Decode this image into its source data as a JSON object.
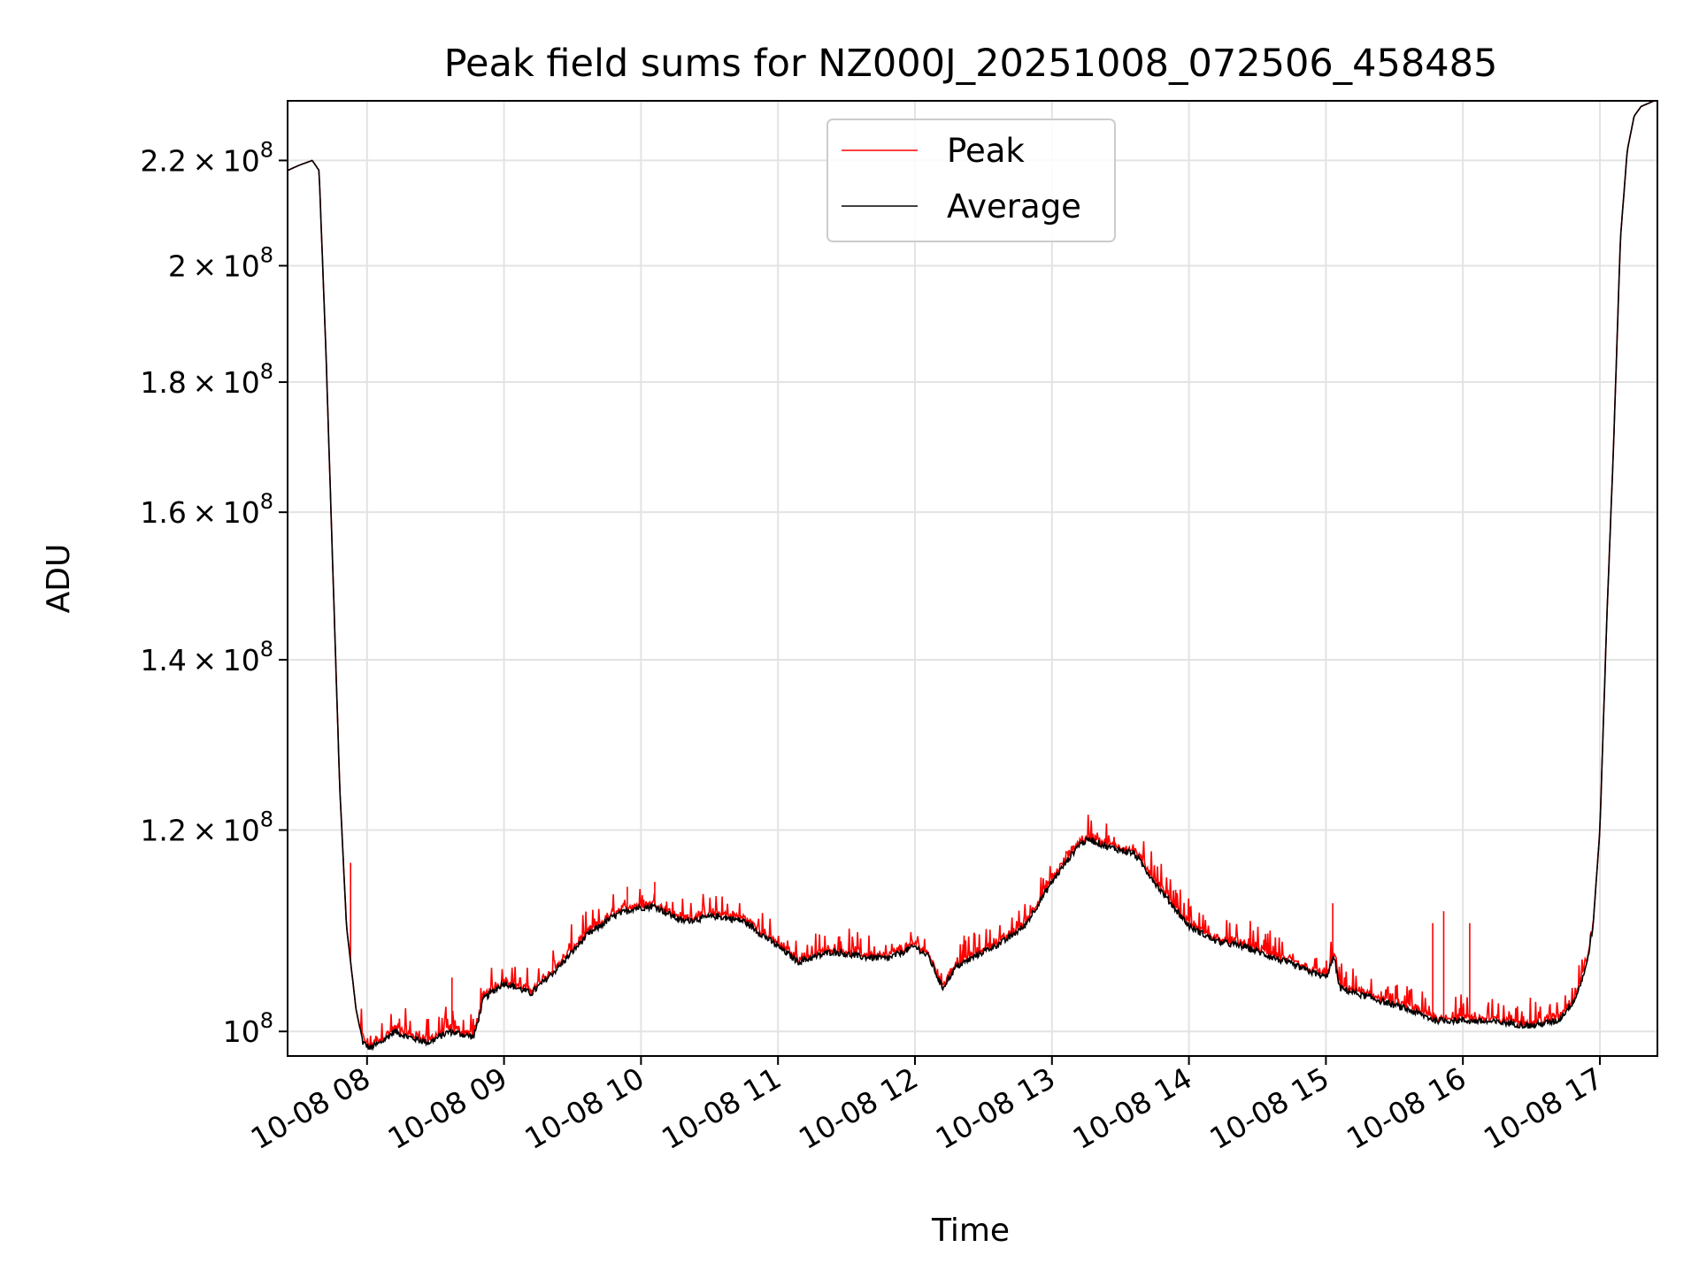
{
  "chart_data": {
    "type": "line",
    "title": "Peak field sums for NZ000J_20251008_072506_458485",
    "xlabel": "Time",
    "ylabel": "ADU",
    "y_scale": "log",
    "grid": true,
    "legend_position": "top-center",
    "xlim_hours": [
      7.42,
      17.42
    ],
    "ylim": [
      97800000.0,
      232200000.0
    ],
    "x_ticks": [
      {
        "hour": 8,
        "label": "10-08 08"
      },
      {
        "hour": 9,
        "label": "10-08 09"
      },
      {
        "hour": 10,
        "label": "10-08 10"
      },
      {
        "hour": 11,
        "label": "10-08 11"
      },
      {
        "hour": 12,
        "label": "10-08 12"
      },
      {
        "hour": 13,
        "label": "10-08 13"
      },
      {
        "hour": 14,
        "label": "10-08 14"
      },
      {
        "hour": 15,
        "label": "10-08 15"
      },
      {
        "hour": 16,
        "label": "10-08 16"
      },
      {
        "hour": 17,
        "label": "10-08 17"
      }
    ],
    "y_ticks": [
      {
        "value": 100000000.0,
        "mantissa": "",
        "exponent": "8"
      },
      {
        "value": 120000000.0,
        "mantissa": "1.2",
        "exponent": "8"
      },
      {
        "value": 140000000.0,
        "mantissa": "1.4",
        "exponent": "8"
      },
      {
        "value": 160000000.0,
        "mantissa": "1.6",
        "exponent": "8"
      },
      {
        "value": 180000000.0,
        "mantissa": "1.8",
        "exponent": "8"
      },
      {
        "value": 200000000.0,
        "mantissa": "2",
        "exponent": "8"
      },
      {
        "value": 220000000.0,
        "mantissa": "2.2",
        "exponent": "8"
      }
    ],
    "series": [
      {
        "name": "Peak",
        "color": "#ff0000",
        "style": "noisy-upper"
      },
      {
        "name": "Average",
        "color": "#000000",
        "style": "smooth"
      }
    ],
    "x_hours": [
      7.42,
      7.5,
      7.6,
      7.65,
      7.7,
      7.8,
      7.85,
      7.92,
      7.97,
      8.02,
      8.1,
      8.2,
      8.3,
      8.45,
      8.6,
      8.78,
      8.85,
      9.0,
      9.2,
      9.4,
      9.6,
      9.8,
      9.95,
      10.1,
      10.3,
      10.55,
      10.75,
      10.95,
      11.15,
      11.4,
      11.6,
      11.8,
      12.0,
      12.1,
      12.2,
      12.3,
      12.5,
      12.65,
      12.8,
      13.0,
      13.2,
      13.28,
      13.4,
      13.6,
      13.8,
      14.0,
      14.2,
      14.4,
      14.6,
      14.8,
      15.0,
      15.06,
      15.1,
      15.3,
      15.6,
      15.8,
      16.0,
      16.3,
      16.5,
      16.7,
      16.82,
      16.9,
      16.95,
      17.0,
      17.05,
      17.1,
      17.15,
      17.2,
      17.25,
      17.3,
      17.42
    ],
    "average": [
      218000000.0,
      219000000.0,
      220000000.0,
      218000000.0,
      185000000.0,
      125000000.0,
      110000000.0,
      102000000.0,
      99000000.0,
      98500000.0,
      99000000.0,
      100000000.0,
      99500000.0,
      99000000.0,
      100000000.0,
      99500000.0,
      103000000.0,
      104500000.0,
      103500000.0,
      106000000.0,
      109000000.0,
      111000000.0,
      111800000.0,
      112000000.0,
      110500000.0,
      111000000.0,
      110500000.0,
      108500000.0,
      106500000.0,
      107500000.0,
      107000000.0,
      106800000.0,
      108000000.0,
      107000000.0,
      104000000.0,
      106000000.0,
      107500000.0,
      108500000.0,
      110000000.0,
      114500000.0,
      118500000.0,
      119000000.0,
      118200000.0,
      117500000.0,
      113500000.0,
      110000000.0,
      108500000.0,
      108000000.0,
      107000000.0,
      106000000.0,
      105000000.0,
      107000000.0,
      104000000.0,
      103200000.0,
      102000000.0,
      101000000.0,
      101000000.0,
      100800000.0,
      100500000.0,
      101000000.0,
      103000000.0,
      106000000.0,
      110000000.0,
      120000000.0,
      145000000.0,
      170000000.0,
      205000000.0,
      222000000.0,
      229000000.0,
      231000000.0,
      232500000.0
    ],
    "peak_spikes": [
      {
        "hour": 7.88,
        "value": 116500000.0
      },
      {
        "hour": 8.62,
        "value": 105000000.0
      },
      {
        "hour": 9.9,
        "value": 114000000.0
      },
      {
        "hour": 10.1,
        "value": 114500000.0
      },
      {
        "hour": 11.45,
        "value": 109000000.0
      },
      {
        "hour": 12.35,
        "value": 108200000.0
      },
      {
        "hour": 15.05,
        "value": 112300000.0
      },
      {
        "hour": 15.78,
        "value": 110300000.0
      },
      {
        "hour": 15.86,
        "value": 111500000.0
      },
      {
        "hour": 16.05,
        "value": 110300000.0
      }
    ]
  }
}
